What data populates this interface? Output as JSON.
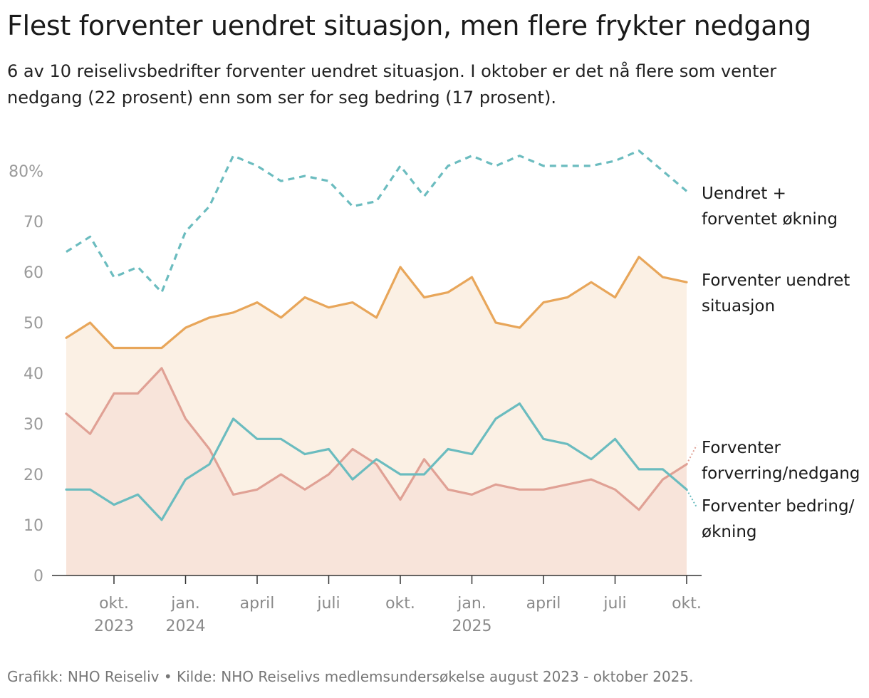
{
  "title": "Flest forventer uendret situasjon, men flere frykter nedgang",
  "subtitle": "6 av 10 reiselivsbedrifter forventer uendret situasjon. I oktober er det nå flere som venter nedgang (22 prosent) enn som ser for seg bedring (17 prosent).",
  "footer": "Grafikk: NHO Reiseliv • Kilde: NHO Reiselivs medlemsundersøkelse august 2023 - oktober 2025.",
  "chart_data": {
    "type": "line",
    "y_ticks": [
      "0",
      "10",
      "20",
      "30",
      "40",
      "50",
      "60",
      "70",
      "80%"
    ],
    "ylim": [
      0,
      85
    ],
    "x_ticks": [
      {
        "index": 2,
        "label": "okt.",
        "sub": "2023"
      },
      {
        "index": 5,
        "label": "jan.",
        "sub": "2024"
      },
      {
        "index": 8,
        "label": "april",
        "sub": ""
      },
      {
        "index": 11,
        "label": "juli",
        "sub": ""
      },
      {
        "index": 14,
        "label": "okt.",
        "sub": ""
      },
      {
        "index": 17,
        "label": "jan.",
        "sub": "2025"
      },
      {
        "index": 20,
        "label": "april",
        "sub": ""
      },
      {
        "index": 23,
        "label": "juli",
        "sub": ""
      },
      {
        "index": 26,
        "label": "okt.",
        "sub": ""
      }
    ],
    "series": [
      {
        "key": "sum",
        "name": "Uendret + forventet økning",
        "label_lines": [
          "Uendret +",
          "forventet økning"
        ],
        "color": "#6bbcbf",
        "dashed": true,
        "values": [
          64,
          67,
          59,
          61,
          56,
          68,
          73,
          83,
          81,
          78,
          79,
          78,
          73,
          74,
          81,
          75,
          81,
          83,
          81,
          83,
          81,
          81,
          81,
          82,
          84,
          80,
          76
        ]
      },
      {
        "key": "uendret",
        "name": "Forventer uendret situasjon",
        "label_lines": [
          "Forventer uendret",
          "situasjon"
        ],
        "color": "#e8a65a",
        "fill": "#fbf0e4",
        "values": [
          47,
          50,
          45,
          45,
          45,
          49,
          51,
          52,
          54,
          51,
          55,
          53,
          54,
          51,
          61,
          55,
          56,
          59,
          50,
          49,
          54,
          55,
          58,
          55,
          63,
          59,
          58
        ]
      },
      {
        "key": "nedgang",
        "name": "Forventer forverring/nedgang",
        "label_lines": [
          "Forventer",
          "forverring/nedgang"
        ],
        "color": "#e0a195",
        "fill": "#f8e4da",
        "values": [
          32,
          28,
          36,
          36,
          41,
          31,
          25,
          16,
          17,
          20,
          17,
          20,
          25,
          22,
          15,
          23,
          17,
          16,
          18,
          17,
          17,
          18,
          19,
          17,
          13,
          19,
          22
        ]
      },
      {
        "key": "bedring",
        "name": "Forventer bedring/økning",
        "label_lines": [
          "Forventer bedring/",
          "økning"
        ],
        "color": "#6bbcbf",
        "values": [
          17,
          17,
          14,
          16,
          11,
          19,
          22,
          31,
          27,
          27,
          24,
          25,
          19,
          23,
          20,
          20,
          25,
          24,
          31,
          34,
          27,
          26,
          23,
          27,
          21,
          21,
          17
        ]
      }
    ]
  }
}
